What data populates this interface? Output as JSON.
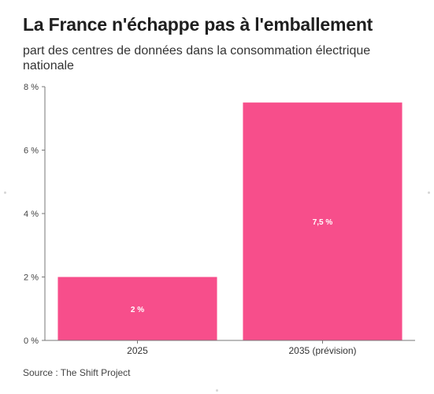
{
  "title": "La France n'échappe pas à l'emballement",
  "subtitle": "part des centres de données dans la consommation électrique nationale",
  "source": "Source : The Shift Project",
  "colors": {
    "bar": "#f74e8b",
    "grid": "#e6e6e6",
    "axis": "#777777"
  },
  "chart_data": {
    "type": "bar",
    "title": "La France n'échappe pas à l'emballement",
    "subtitle": "part des centres de données dans la consommation électrique nationale",
    "categories": [
      "2025",
      "2035 (prévision)"
    ],
    "values": [
      2,
      7.5
    ],
    "data_labels": [
      "2 %",
      "7,5 %"
    ],
    "xlabel": "",
    "ylabel": "",
    "ylim": [
      0,
      8
    ],
    "yticks": [
      0,
      2,
      4,
      6,
      8
    ],
    "ytick_labels": [
      "0 %",
      "2 %",
      "4 %",
      "6 %",
      "8 %"
    ],
    "grid": false,
    "legend": "none"
  }
}
